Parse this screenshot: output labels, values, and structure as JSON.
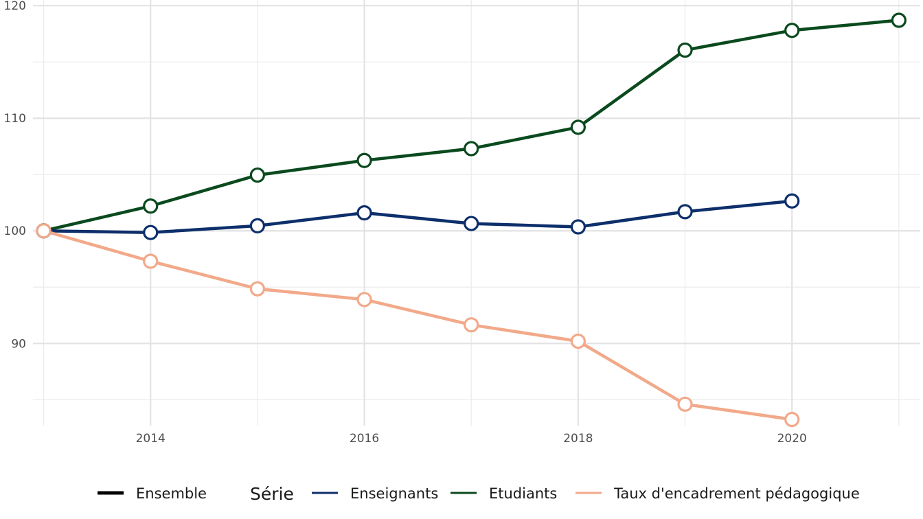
{
  "chart_data": {
    "type": "line",
    "title": "",
    "xlabel": "",
    "ylabel": "",
    "xlim": [
      2012.9,
      2021.2
    ],
    "ylim": [
      82.7,
      120.5
    ],
    "x_ticks": [
      2014,
      2016,
      2018,
      2020
    ],
    "y_ticks": [
      90,
      100,
      110,
      120
    ],
    "grid": true,
    "legend_position": "bottom",
    "legend": {
      "linetype_entry": "Ensemble",
      "title": "Série"
    },
    "series": [
      {
        "name": "Enseignants",
        "color": "#0d2f6b",
        "x": [
          2013,
          2014,
          2015,
          2016,
          2017,
          2018,
          2019,
          2020
        ],
        "values": [
          100,
          99.85,
          100.45,
          101.6,
          100.65,
          100.35,
          101.7,
          102.65
        ]
      },
      {
        "name": "Etudiants",
        "color": "#0a4a1e",
        "x": [
          2013,
          2014,
          2015,
          2016,
          2017,
          2018,
          2019,
          2020,
          2021
        ],
        "values": [
          100,
          102.2,
          104.95,
          106.25,
          107.3,
          109.2,
          116.05,
          117.8,
          118.7
        ]
      },
      {
        "name": "Taux d'encadrement pédagogique",
        "color": "#f2a98a",
        "x": [
          2013,
          2014,
          2015,
          2016,
          2017,
          2018,
          2019,
          2020
        ],
        "values": [
          100,
          97.3,
          94.85,
          93.9,
          91.65,
          90.2,
          84.6,
          83.25
        ]
      }
    ]
  }
}
